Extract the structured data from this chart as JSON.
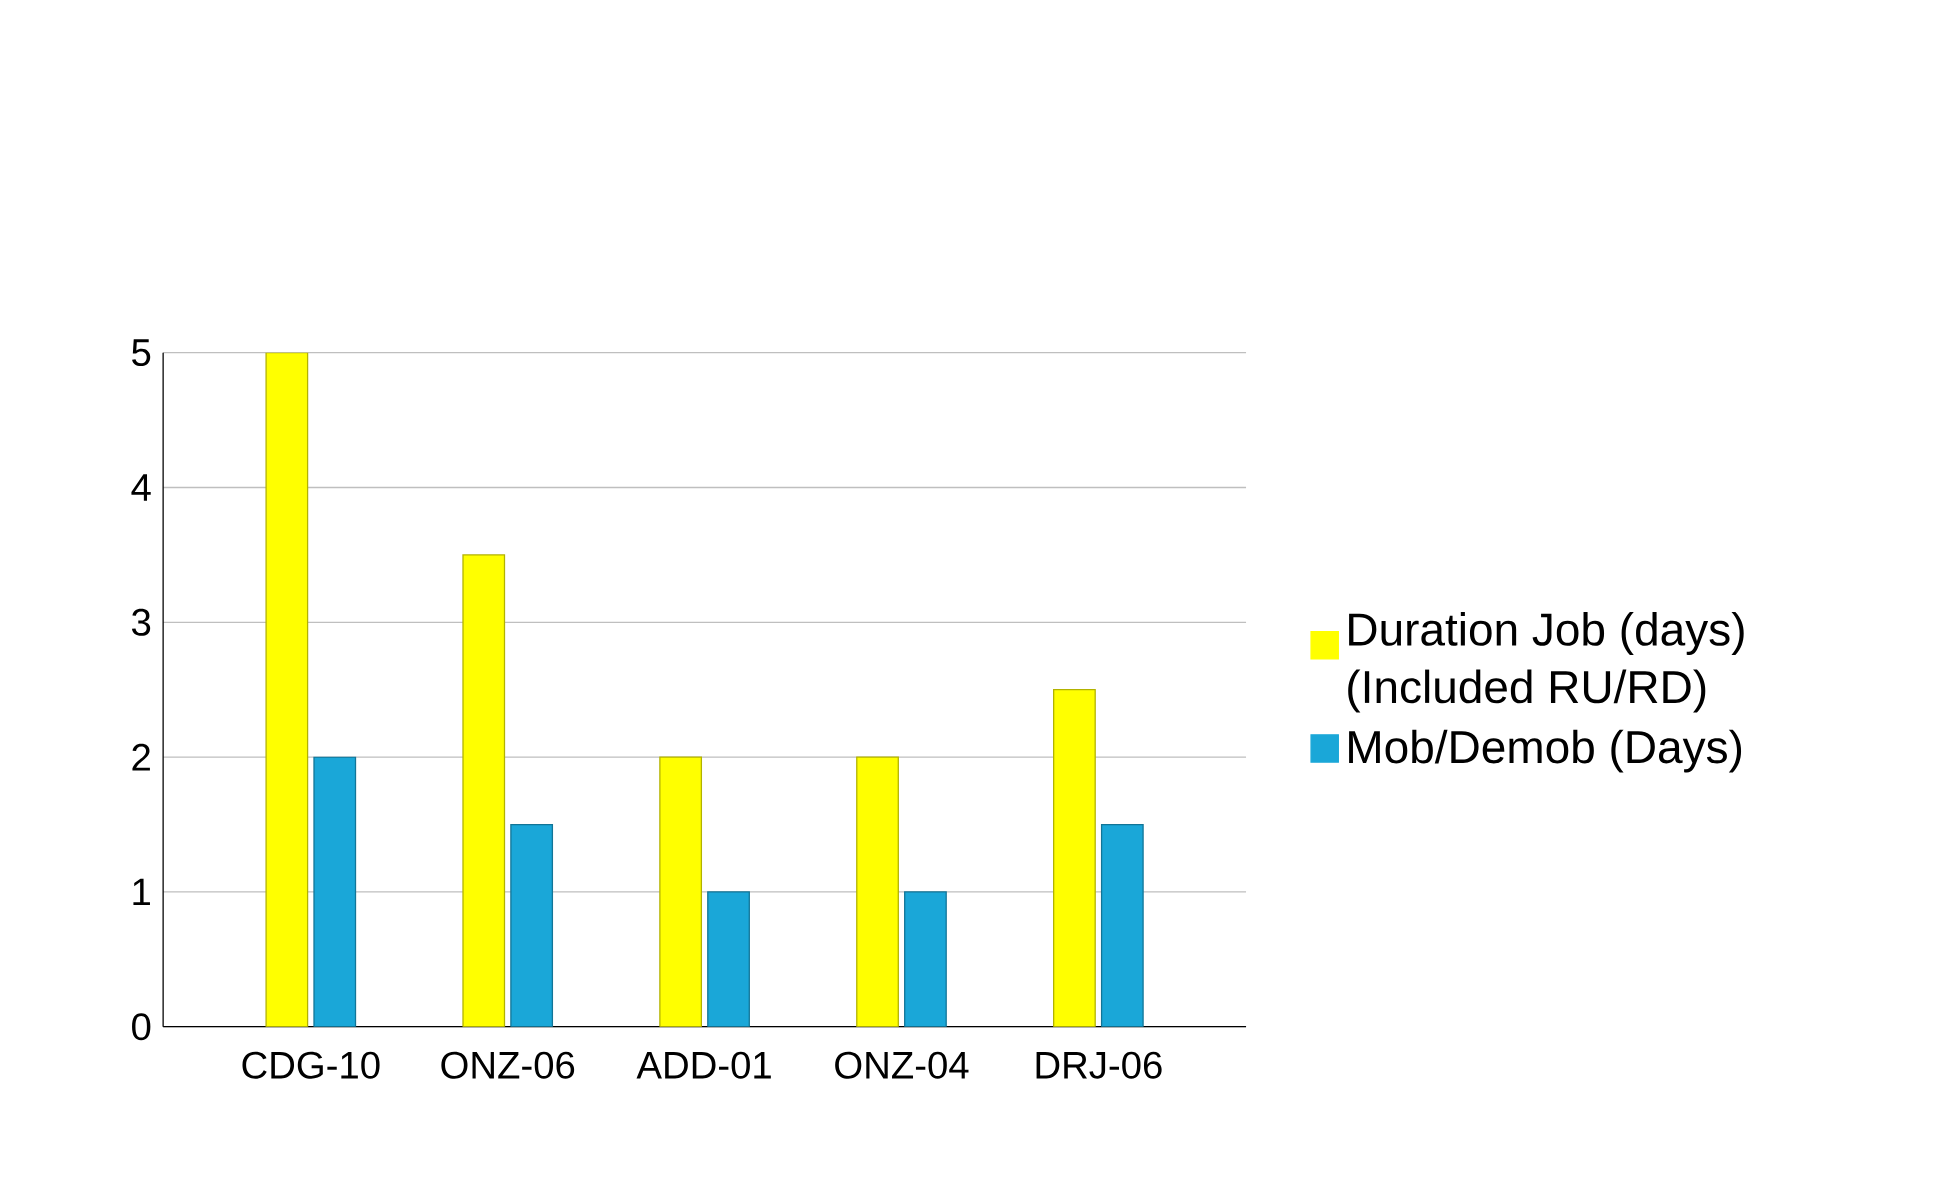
{
  "chart_data": {
    "type": "bar",
    "categories": [
      "CDG-10",
      "ONZ-06",
      "ADD-01",
      "ONZ-04",
      "DRJ-06"
    ],
    "series": [
      {
        "name": "Duration Job (days) (Included RU/RD)",
        "color": "#ffff00",
        "values": [
          5,
          3.5,
          2,
          2,
          2.5
        ]
      },
      {
        "name": "Mob/Demob (Days)",
        "color": "#1aa7d8",
        "values": [
          2,
          1.5,
          1,
          1,
          1.5
        ]
      }
    ],
    "ylim": [
      0,
      5
    ],
    "yticks": [
      0,
      1,
      2,
      3,
      4,
      5
    ],
    "grid": "y",
    "legend": "right"
  }
}
